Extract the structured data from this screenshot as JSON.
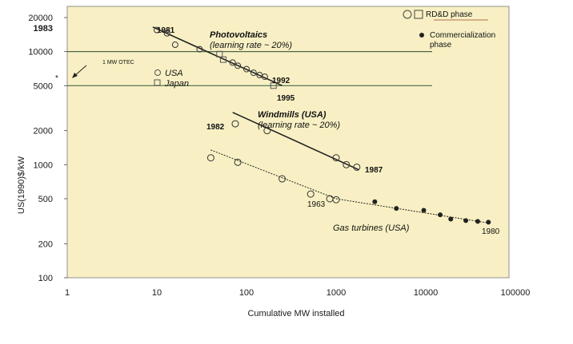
{
  "chart_data": {
    "type": "scatter",
    "xscale": "log",
    "yscale": "log",
    "xlim": [
      1,
      100000
    ],
    "ylim": [
      100,
      20000
    ],
    "xlabel": "Cumulative MW installed",
    "ylabel": "US(1990)$/kW",
    "x_ticks": [
      "1",
      "10",
      "100",
      "1000",
      "10000",
      "100000"
    ],
    "y_ticks": [
      "100",
      "200",
      "500",
      "1000",
      "2000",
      "5000",
      "10000",
      "20000"
    ],
    "y_extra_tick": "1983",
    "grid": false,
    "legend": {
      "placement": "top-right",
      "entries": [
        {
          "label": "RD&D phase",
          "marker": "open-circle-square"
        },
        {
          "label": "Commercialization phase",
          "marker": "filled-circle"
        }
      ]
    },
    "series": [
      {
        "name": "Photovoltaics",
        "subtitle": "(learning rate ~ 20%)",
        "labels": {
          "start": "1981",
          "mid": "1992",
          "end": "1995"
        },
        "inner_legend": [
          {
            "label": "USA",
            "marker": "open-circle"
          },
          {
            "label": "Japan",
            "marker": "open-square"
          }
        ],
        "points": [
          {
            "x": 10,
            "y": 15500,
            "marker": "circle"
          },
          {
            "x": 13,
            "y": 14500,
            "marker": "circle"
          },
          {
            "x": 16,
            "y": 11500,
            "marker": "circle"
          },
          {
            "x": 30,
            "y": 10500,
            "marker": "circle"
          },
          {
            "x": 50,
            "y": 9500,
            "marker": "square"
          },
          {
            "x": 55,
            "y": 8500,
            "marker": "square"
          },
          {
            "x": 70,
            "y": 8000,
            "marker": "circle"
          },
          {
            "x": 80,
            "y": 7500,
            "marker": "circle"
          },
          {
            "x": 100,
            "y": 7000,
            "marker": "circle"
          },
          {
            "x": 120,
            "y": 6500,
            "marker": "circle"
          },
          {
            "x": 140,
            "y": 6200,
            "marker": "circle"
          },
          {
            "x": 160,
            "y": 6000,
            "marker": "circle"
          },
          {
            "x": 200,
            "y": 5000,
            "marker": "square"
          }
        ],
        "fit": [
          [
            9,
            16500
          ],
          [
            250,
            5000
          ]
        ]
      },
      {
        "name": "Windmills (USA)",
        "subtitle": "(learning rate ~ 20%)",
        "labels": {
          "start": "1982",
          "end": "1987"
        },
        "points": [
          {
            "x": 75,
            "y": 2300,
            "marker": "circle"
          },
          {
            "x": 170,
            "y": 2000,
            "marker": "circle"
          },
          {
            "x": 1000,
            "y": 1150,
            "marker": "circle"
          },
          {
            "x": 1300,
            "y": 1000,
            "marker": "circle"
          },
          {
            "x": 1700,
            "y": 950,
            "marker": "circle"
          }
        ],
        "fit": [
          [
            70,
            2900
          ],
          [
            1800,
            900
          ]
        ]
      },
      {
        "name": "Gas turbines (USA)",
        "labels": {
          "mid": "1963",
          "end": "1980"
        },
        "points": [
          {
            "x": 40,
            "y": 1150,
            "marker": "circle"
          },
          {
            "x": 80,
            "y": 1050,
            "marker": "circle"
          },
          {
            "x": 250,
            "y": 750,
            "marker": "circle"
          },
          {
            "x": 520,
            "y": 550,
            "marker": "circle"
          },
          {
            "x": 850,
            "y": 500,
            "marker": "circle"
          },
          {
            "x": 1000,
            "y": 490,
            "marker": "circle"
          },
          {
            "x": 2700,
            "y": 470,
            "marker": "filled"
          },
          {
            "x": 4700,
            "y": 410,
            "marker": "filled"
          },
          {
            "x": 9500,
            "y": 395,
            "marker": "filled"
          },
          {
            "x": 14500,
            "y": 360,
            "marker": "filled"
          },
          {
            "x": 19000,
            "y": 330,
            "marker": "filled"
          },
          {
            "x": 28000,
            "y": 320,
            "marker": "filled"
          },
          {
            "x": 38000,
            "y": 315,
            "marker": "filled"
          },
          {
            "x": 50000,
            "y": 310,
            "marker": "filled"
          }
        ],
        "fit": [
          [
            40,
            1350
          ],
          [
            1000,
            500
          ],
          [
            50000,
            305
          ]
        ]
      }
    ],
    "reference_lines": [
      {
        "y": 10000,
        "label": "1 MW OTEC"
      },
      {
        "y": 5000,
        "label": ""
      }
    ],
    "annotations": [
      {
        "text": "*",
        "x": 1,
        "y": 6600
      }
    ]
  }
}
